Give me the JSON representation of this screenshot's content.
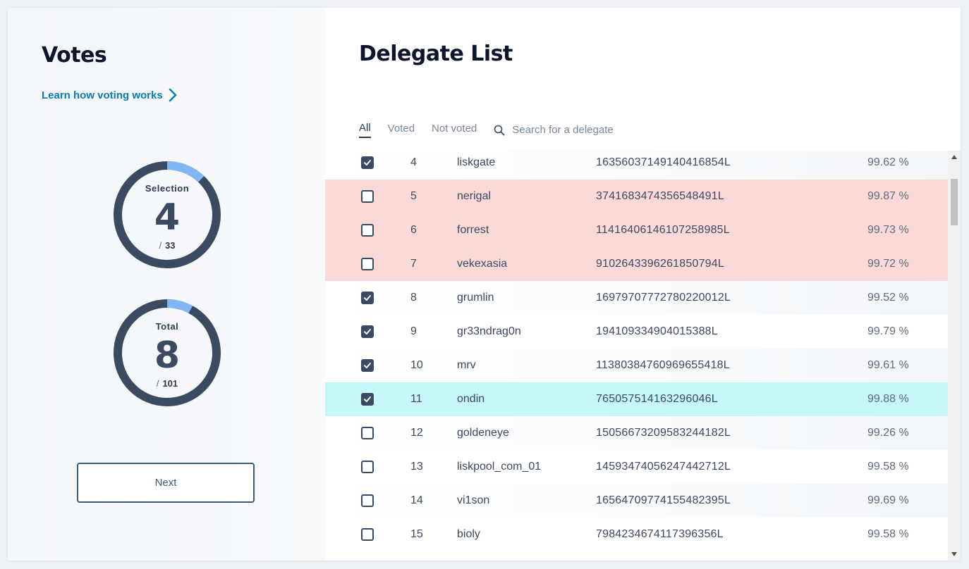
{
  "votes_panel": {
    "title": "Votes",
    "learn_link": "Learn how voting works",
    "selection": {
      "label": "Selection",
      "value": "4",
      "max": "33",
      "progress": 0.121
    },
    "total": {
      "label": "Total",
      "value": "8",
      "max": "101",
      "progress": 0.079
    },
    "next_label": "Next"
  },
  "delegate_panel": {
    "title": "Delegate List",
    "tabs": [
      "All",
      "Voted",
      "Not voted"
    ],
    "active_tab": "All",
    "search_placeholder": "Search for a delegate",
    "rows": [
      {
        "checked": true,
        "rank": "4",
        "name": "liskgate",
        "address": "16356037149140416854L",
        "productivity": "99.62 %",
        "state": "even"
      },
      {
        "checked": false,
        "rank": "5",
        "name": "nerigal",
        "address": "3741683474356548491L",
        "productivity": "99.87 %",
        "state": "warn"
      },
      {
        "checked": false,
        "rank": "6",
        "name": "forrest",
        "address": "11416406146107258985L",
        "productivity": "99.73 %",
        "state": "warn"
      },
      {
        "checked": false,
        "rank": "7",
        "name": "vekexasia",
        "address": "9102643396261850794L",
        "productivity": "99.72 %",
        "state": "warn"
      },
      {
        "checked": true,
        "rank": "8",
        "name": "grumlin",
        "address": "16979707772780220012L",
        "productivity": "99.52 %",
        "state": "even"
      },
      {
        "checked": true,
        "rank": "9",
        "name": "gr33ndrag0n",
        "address": "194109334904015388L",
        "productivity": "99.79 %",
        "state": "odd"
      },
      {
        "checked": true,
        "rank": "10",
        "name": "mrv",
        "address": "11380384760969655418L",
        "productivity": "99.61 %",
        "state": "even"
      },
      {
        "checked": true,
        "rank": "11",
        "name": "ondin",
        "address": "765057514163296046L",
        "productivity": "99.88 %",
        "state": "sel"
      },
      {
        "checked": false,
        "rank": "12",
        "name": "goldeneye",
        "address": "15056673209583244182L",
        "productivity": "99.26 %",
        "state": "even"
      },
      {
        "checked": false,
        "rank": "13",
        "name": "liskpool_com_01",
        "address": "14593474056247442712L",
        "productivity": "99.58 %",
        "state": "odd"
      },
      {
        "checked": false,
        "rank": "14",
        "name": "vi1son",
        "address": "16564709774155482395L",
        "productivity": "99.69 %",
        "state": "even"
      },
      {
        "checked": false,
        "rank": "15",
        "name": "bioly",
        "address": "7984234674117396356L",
        "productivity": "99.58 %",
        "state": "odd"
      }
    ]
  },
  "icons": {
    "learn_arrow": "chevron-right-icon",
    "search": "search-icon",
    "check": "check-icon"
  },
  "colors": {
    "accent": "#0b7bb3",
    "ring_track": "#3a4a60",
    "ring_progress": "#7fb7f5",
    "warn_row": "#fcd9d9",
    "selected_row": "#c7f6fb"
  }
}
